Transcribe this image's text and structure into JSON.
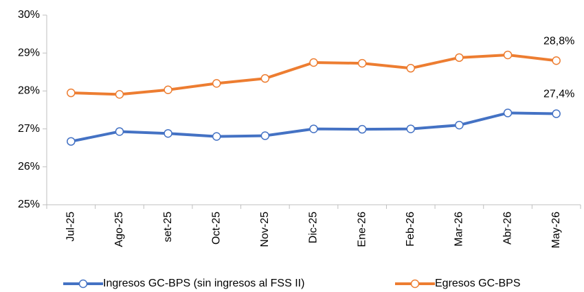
{
  "chart_data": {
    "type": "line",
    "categories": [
      "Jul-25",
      "Ago-25",
      "set-25",
      "Oct-25",
      "Nov-25",
      "Dic-25",
      "Ene-26",
      "Feb-26",
      "Mar-26",
      "Abr-26",
      "May-26"
    ],
    "series": [
      {
        "name": "Ingresos GC-BPS (sin ingresos al FSS II)",
        "color": "#4472c4",
        "values": [
          26.67,
          26.93,
          26.88,
          26.8,
          26.82,
          27.0,
          26.99,
          27.0,
          27.1,
          27.42,
          27.4
        ],
        "value_labels": [
          null,
          null,
          null,
          null,
          null,
          null,
          null,
          null,
          null,
          null,
          "27,4%"
        ]
      },
      {
        "name": "Egresos GC-BPS",
        "color": "#ed7d31",
        "values": [
          27.95,
          27.91,
          28.03,
          28.2,
          28.33,
          28.75,
          28.73,
          28.6,
          28.88,
          28.95,
          28.8
        ],
        "value_labels": [
          null,
          null,
          null,
          null,
          null,
          null,
          null,
          null,
          null,
          null,
          "28,8%"
        ]
      }
    ],
    "ylim": [
      25,
      30
    ],
    "yticks": [
      {
        "value": 25,
        "label": "25%"
      },
      {
        "value": 26,
        "label": "26%"
      },
      {
        "value": 27,
        "label": "27%"
      },
      {
        "value": 28,
        "label": "28%"
      },
      {
        "value": 29,
        "label": "29%"
      },
      {
        "value": 30,
        "label": "30%"
      }
    ],
    "grid": false,
    "legend": "bottom"
  }
}
